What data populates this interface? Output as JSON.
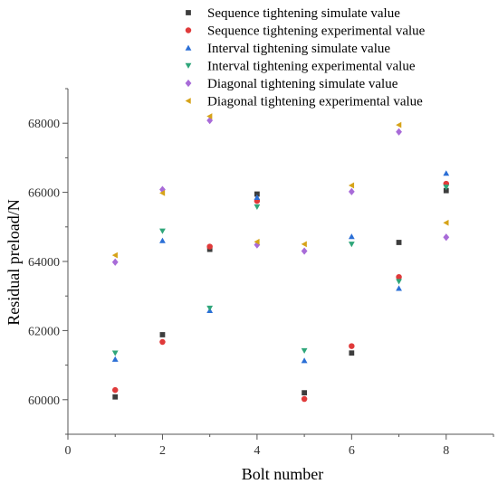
{
  "chart_data": {
    "type": "scatter",
    "title": "",
    "xlabel": "Bolt number",
    "ylabel": "Residual preload/N",
    "xlim": [
      0,
      9
    ],
    "ylim": [
      59000,
      69000
    ],
    "x_ticks": [
      0,
      2,
      4,
      6,
      8
    ],
    "y_ticks": [
      60000,
      62000,
      64000,
      66000,
      68000
    ],
    "grid": false,
    "legend_position": "top",
    "series": [
      {
        "name": "Sequence tightening simulate value",
        "marker": "square",
        "color": "#3d3d3d",
        "x": [
          1,
          2,
          3,
          4,
          5,
          6,
          7,
          8
        ],
        "y": [
          60080,
          61880,
          64350,
          65950,
          60200,
          61350,
          64550,
          66050
        ]
      },
      {
        "name": "Sequence tightening experimental value",
        "marker": "circle",
        "color": "#e03a3a",
        "x": [
          1,
          2,
          3,
          4,
          5,
          6,
          7,
          8
        ],
        "y": [
          60280,
          61670,
          64430,
          65750,
          60020,
          61550,
          63550,
          66250
        ]
      },
      {
        "name": "Interval tightening simulate value",
        "marker": "triangle-up",
        "color": "#2b6fd6",
        "x": [
          1,
          2,
          3,
          4,
          5,
          6,
          7,
          8
        ],
        "y": [
          61170,
          64600,
          62580,
          65850,
          61130,
          64720,
          63220,
          66550
        ]
      },
      {
        "name": "Interval tightening experimental value",
        "marker": "triangle-down",
        "color": "#2fa67a",
        "x": [
          1,
          2,
          3,
          4,
          5,
          6,
          7,
          8
        ],
        "y": [
          61350,
          64880,
          62650,
          65580,
          61420,
          64500,
          63420,
          66150
        ]
      },
      {
        "name": "Diagonal tightening simulate value",
        "marker": "diamond",
        "color": "#a86bd8",
        "x": [
          1,
          2,
          3,
          4,
          5,
          6,
          7,
          8
        ],
        "y": [
          63980,
          66080,
          68080,
          64480,
          64300,
          66020,
          67750,
          64700
        ]
      },
      {
        "name": "Diagonal tightening experimental value",
        "marker": "triangle-left",
        "color": "#d6a319",
        "x": [
          1,
          2,
          3,
          4,
          5,
          6,
          7,
          8
        ],
        "y": [
          64180,
          65980,
          68200,
          64570,
          64500,
          66200,
          67950,
          65120
        ]
      }
    ]
  }
}
